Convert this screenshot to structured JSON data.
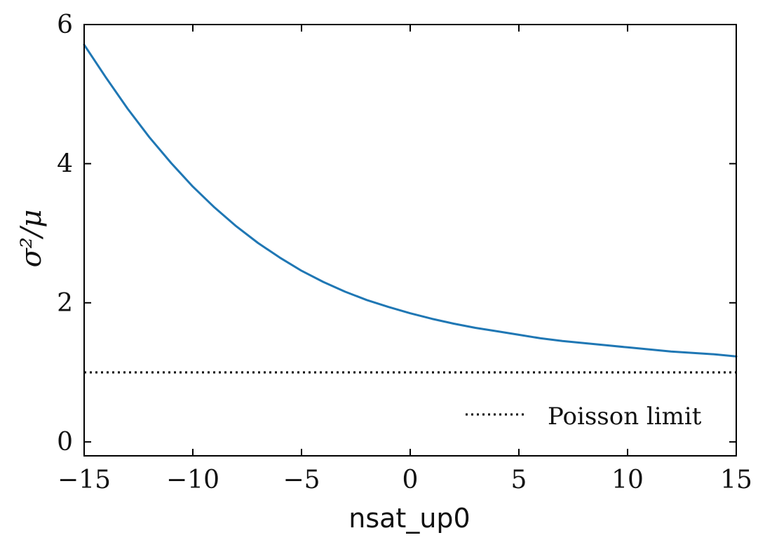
{
  "chart_data": {
    "type": "line",
    "xlabel": "nsat_up0",
    "ylabel": "σ²/μ",
    "xlim": [
      -15,
      15
    ],
    "ylim": [
      -0.2,
      6
    ],
    "xticks": [
      -15,
      -10,
      -5,
      0,
      5,
      10,
      15
    ],
    "xtick_labels": [
      "−15",
      "−10",
      "−5",
      "0",
      "5",
      "10",
      "15"
    ],
    "yticks": [
      0,
      2,
      4,
      6
    ],
    "ytick_labels": [
      "0",
      "2",
      "4",
      "6"
    ],
    "grid": false,
    "legend_position": "bottom-right",
    "series": [
      {
        "color": "#1f77b4",
        "style": "solid",
        "x": [
          -15,
          -14,
          -13,
          -12,
          -11,
          -10,
          -9,
          -8,
          -7,
          -6,
          -5,
          -4,
          -3,
          -2,
          -1,
          0,
          1,
          2,
          3,
          4,
          5,
          6,
          7,
          8,
          9,
          10,
          11,
          12,
          13,
          14,
          15
        ],
        "y": [
          5.71,
          5.24,
          4.79,
          4.38,
          4.01,
          3.67,
          3.37,
          3.1,
          2.86,
          2.65,
          2.46,
          2.3,
          2.16,
          2.04,
          1.94,
          1.85,
          1.77,
          1.7,
          1.64,
          1.59,
          1.54,
          1.49,
          1.45,
          1.42,
          1.39,
          1.36,
          1.33,
          1.3,
          1.28,
          1.26,
          1.23
        ]
      },
      {
        "name": "Poisson limit",
        "color": "#000000",
        "style": "dotted",
        "x": [
          -15,
          15
        ],
        "y": [
          1,
          1
        ]
      }
    ]
  }
}
